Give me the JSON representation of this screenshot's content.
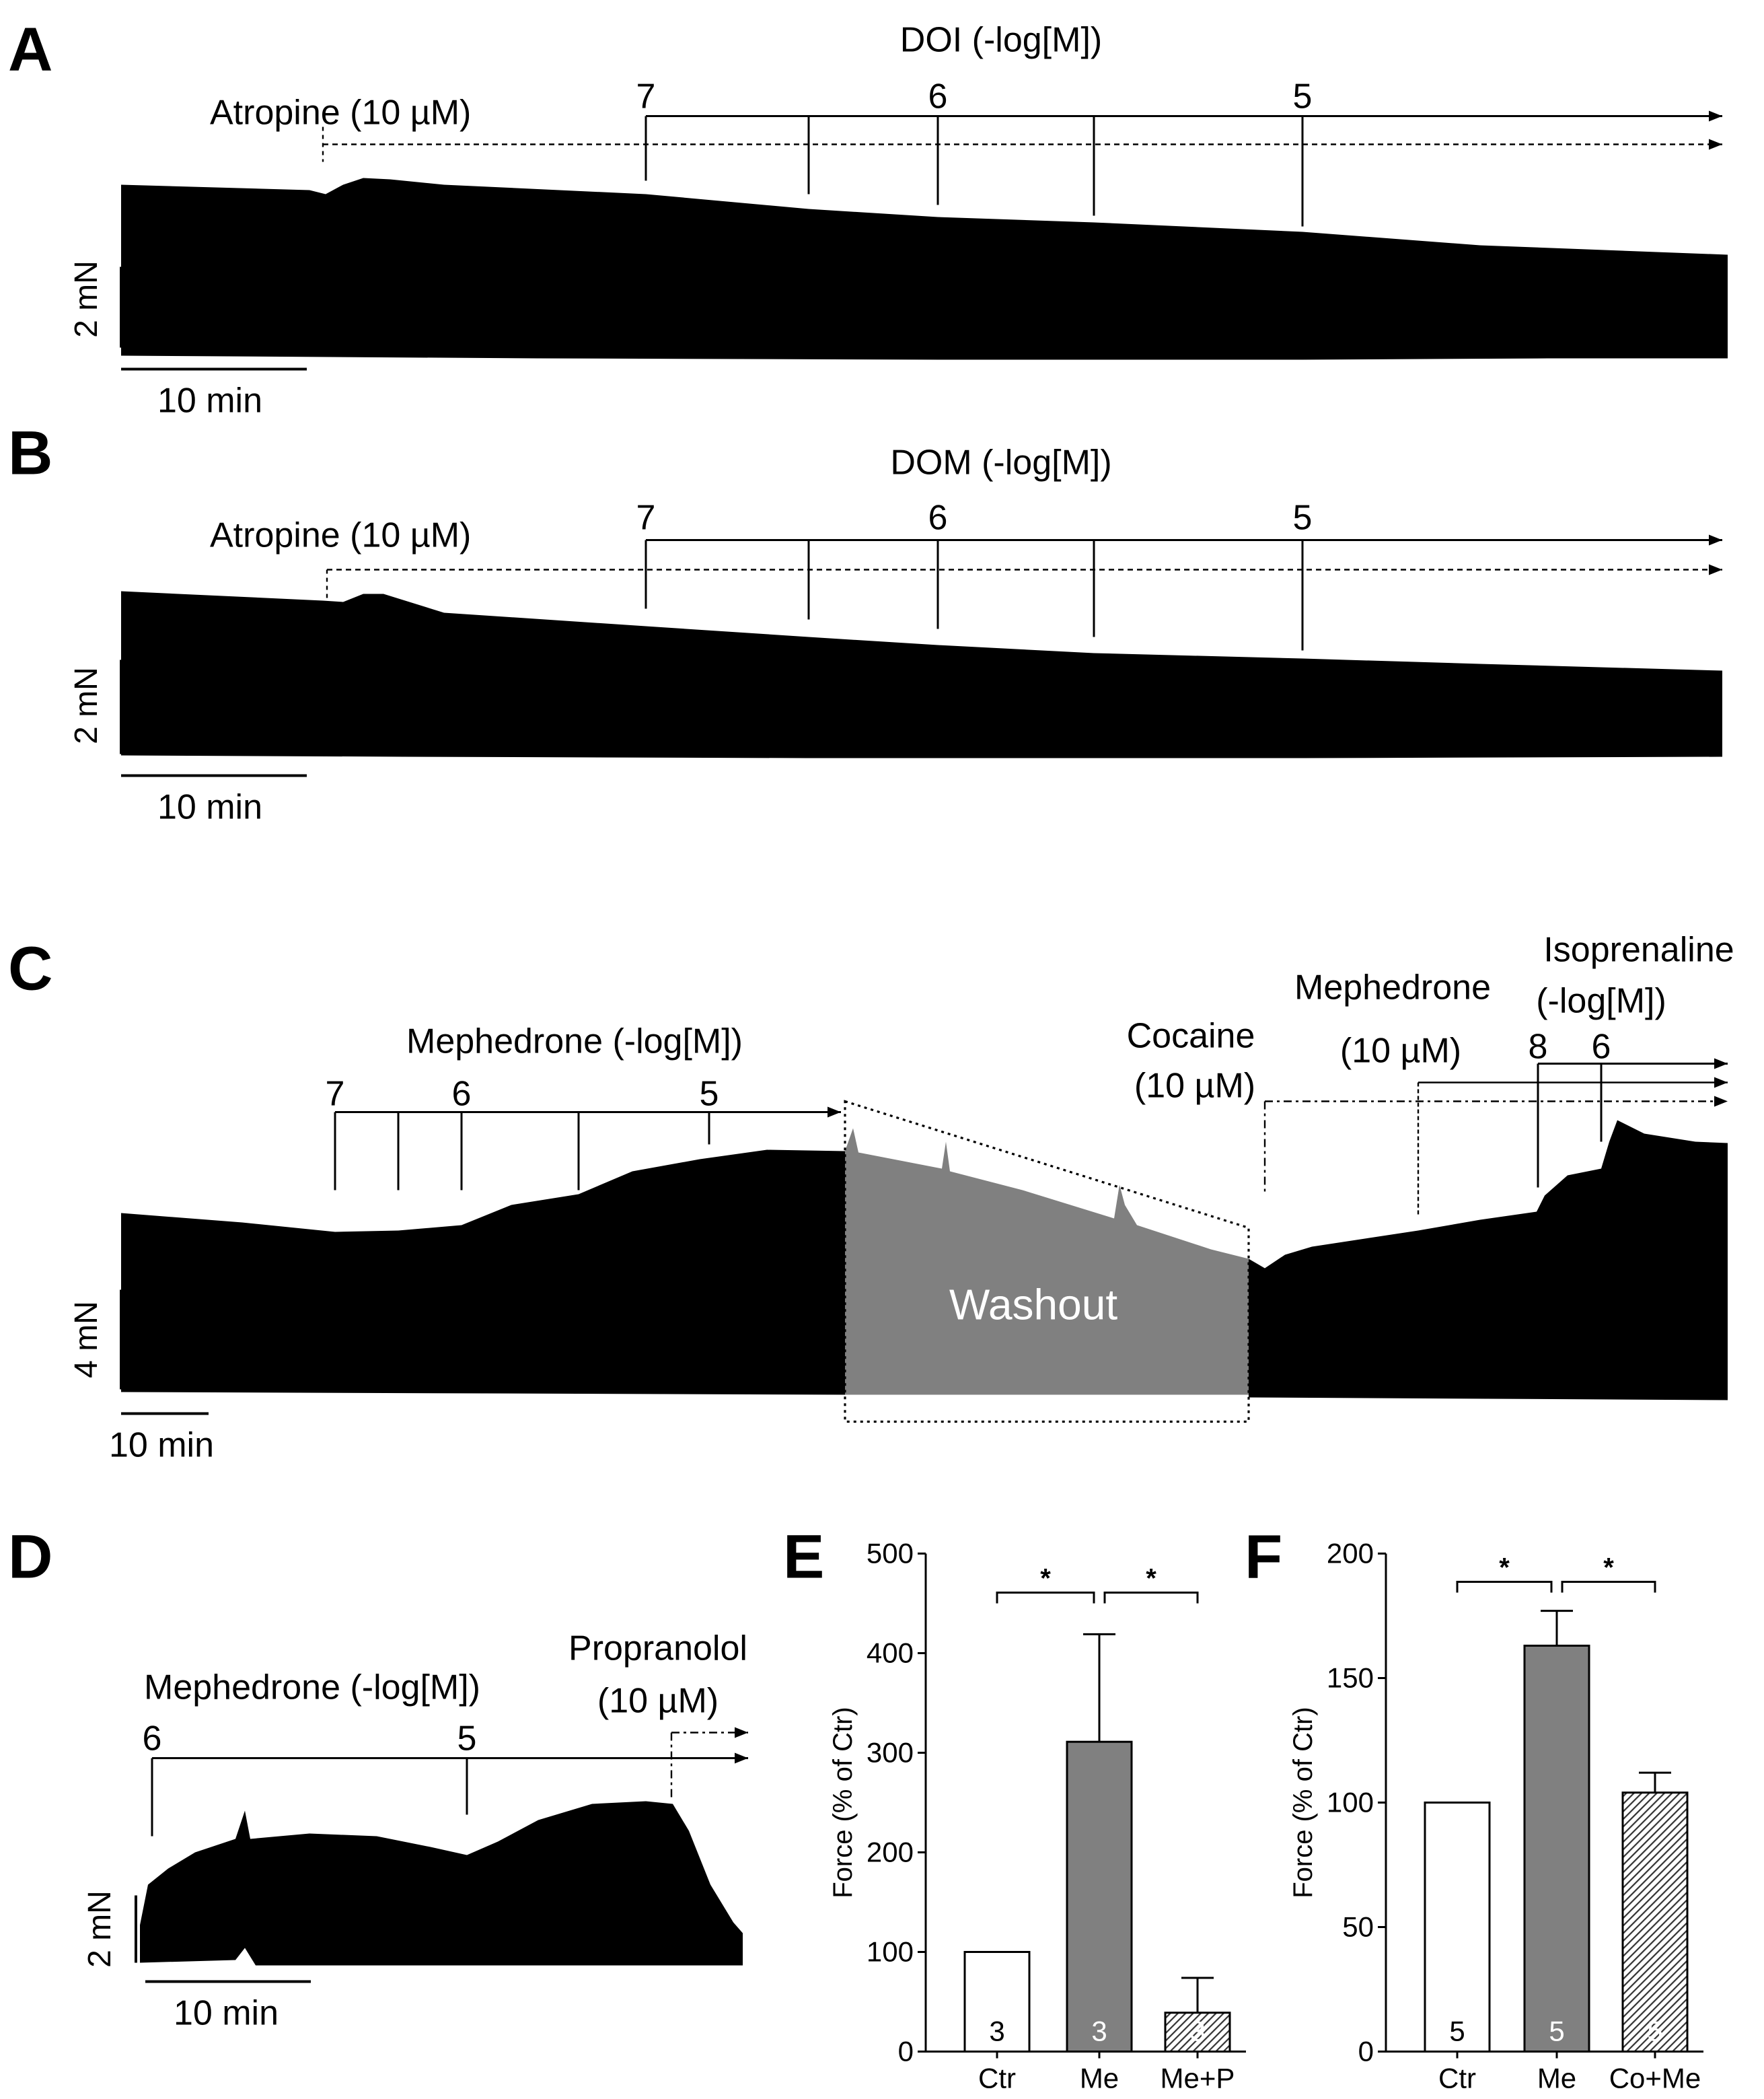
{
  "colors": {
    "trace": "#000000",
    "washout": "#808080",
    "gray_bar": "#808080",
    "white_bar": "#ffffff",
    "hatch_bar": "#555555"
  },
  "panel_a": {
    "letter": "A",
    "drug_header": "DOI (-log[M])",
    "pretreatment": "Atropine (10 µM)",
    "conc_labels": [
      "7",
      "6",
      "5"
    ],
    "scale_y": "2 mN",
    "scale_x": "10 min"
  },
  "panel_b": {
    "letter": "B",
    "drug_header": "DOM (-log[M])",
    "pretreatment": "Atropine (10 µM)",
    "conc_labels": [
      "7",
      "6",
      "5"
    ],
    "scale_y": "2 mN",
    "scale_x": "10 min"
  },
  "panel_c": {
    "letter": "C",
    "drug_header": "Mephedrone (-log[M])",
    "conc_labels": [
      "7",
      "6",
      "5"
    ],
    "washout": "Washout",
    "cocaine_line1": "Cocaine",
    "cocaine_line2": "(10 µM)",
    "meph_line1": "Mephedrone",
    "meph_line2": "(10 µM)",
    "iso_line1": "Isoprenaline",
    "iso_line2": "(-log[M])",
    "iso_conc": [
      "8",
      "6"
    ],
    "scale_y": "4 mN",
    "scale_x": "10 min"
  },
  "panel_d": {
    "letter": "D",
    "drug_header": "Mephedrone (-log[M])",
    "prop_line1": "Propranolol",
    "prop_line2": "(10 µM)",
    "conc_labels": [
      "6",
      "5"
    ],
    "scale_y": "2 mN",
    "scale_x": "10 min"
  },
  "chart_data": [
    {
      "panel": "E",
      "type": "bar",
      "ylabel": "Force (% of Ctr)",
      "ylim": [
        0,
        500
      ],
      "yticks": [
        0,
        100,
        200,
        300,
        400,
        500
      ],
      "categories": [
        "Ctr",
        "Me",
        "Me+P"
      ],
      "values": [
        100,
        311,
        39
      ],
      "errors": [
        0,
        108,
        35
      ],
      "n": [
        "3",
        "3",
        "3"
      ],
      "fills": [
        "white",
        "gray",
        "hatch"
      ],
      "significance": [
        {
          "from": 0,
          "to": 1,
          "label": "*"
        },
        {
          "from": 1,
          "to": 2,
          "label": "*"
        }
      ]
    },
    {
      "panel": "F",
      "type": "bar",
      "ylabel": "Force (% of Ctr)",
      "ylim": [
        0,
        200
      ],
      "yticks": [
        0,
        50,
        100,
        150,
        200
      ],
      "categories": [
        "Ctr",
        "Me",
        "Co+Me"
      ],
      "values": [
        100,
        163,
        104
      ],
      "errors": [
        0,
        14,
        8
      ],
      "n": [
        "5",
        "5",
        "5"
      ],
      "fills": [
        "white",
        "gray",
        "hatch"
      ],
      "significance": [
        {
          "from": 0,
          "to": 1,
          "label": "*"
        },
        {
          "from": 1,
          "to": 2,
          "label": "*"
        }
      ]
    }
  ]
}
